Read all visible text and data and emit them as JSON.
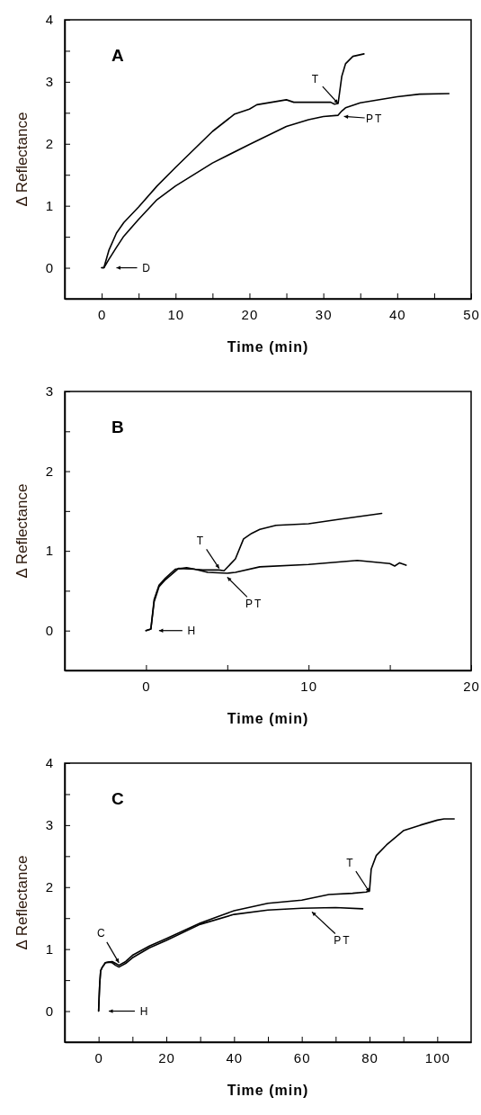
{
  "chart_data": [
    {
      "type": "line",
      "title": "A",
      "xlabel": "Time (min)",
      "ylabel": "Δ Reflectance",
      "xlim": [
        -5,
        50
      ],
      "xticks": [
        0,
        {
          "value": 5,
          "label": null
        },
        10,
        {
          "value": 15,
          "label": null
        },
        20,
        {
          "value": 25,
          "label": null
        },
        30,
        {
          "value": 35,
          "label": null
        },
        40,
        {
          "value": 45,
          "label": null
        },
        50
      ],
      "ylim": [
        -0.5,
        4
      ],
      "yticks": [
        {
          "value": -0.5,
          "label": null
        },
        0,
        {
          "value": 0.5,
          "label": null
        },
        1,
        {
          "value": 1.5,
          "label": null
        },
        2,
        {
          "value": 2.5,
          "label": null
        },
        3,
        {
          "value": 3.5,
          "label": null
        },
        4
      ],
      "series": [
        {
          "color": "#000000",
          "x": [
            0,
            0.3,
            1,
            2,
            3,
            5,
            7.5,
            10,
            15,
            18,
            20,
            21,
            25,
            26,
            31,
            31.5,
            32,
            32.5,
            33,
            34,
            35.5
          ],
          "values": [
            0,
            0,
            0.29,
            0.56,
            0.73,
            0.98,
            1.32,
            1.62,
            2.2,
            2.48,
            2.56,
            2.63,
            2.71,
            2.67,
            2.67,
            2.64,
            2.65,
            3.09,
            3.29,
            3.41,
            3.45
          ]
        },
        {
          "color": "#000000",
          "x": [
            0,
            0.3,
            1,
            2,
            3,
            5,
            7.5,
            10,
            15,
            20,
            25,
            28,
            30,
            32,
            32.5,
            33,
            35,
            40,
            43,
            47
          ],
          "values": [
            0,
            0,
            0.14,
            0.33,
            0.51,
            0.78,
            1.1,
            1.32,
            1.69,
            1.99,
            2.28,
            2.39,
            2.44,
            2.46,
            2.53,
            2.58,
            2.66,
            2.76,
            2.8,
            2.81
          ]
        }
      ],
      "annotations": [
        {
          "text": "T",
          "x": 32,
          "y": 2.65
        },
        {
          "text": "PT",
          "x": 32.8,
          "y": 2.44
        },
        {
          "text": "D",
          "x": 2,
          "y": 0
        }
      ]
    },
    {
      "type": "line",
      "title": "B",
      "xlabel": "Time (min)",
      "ylabel": "Δ Reflectance",
      "xlim": [
        -5,
        20
      ],
      "xticks": [
        0,
        {
          "value": 5,
          "label": null
        },
        10,
        {
          "value": 15,
          "label": null
        },
        20
      ],
      "ylim": [
        -0.5,
        3
      ],
      "yticks": [
        {
          "value": -0.5,
          "label": null
        },
        0,
        {
          "value": 0.5,
          "label": null
        },
        1,
        {
          "value": 1.5,
          "label": null
        },
        2,
        {
          "value": 2.5,
          "label": null
        },
        3
      ],
      "series": [
        {
          "color": "#000000",
          "x": [
            0,
            0.3,
            0.5,
            0.8,
            1.2,
            1.8,
            2.5,
            3,
            3.5,
            4.5,
            4.8,
            5.5,
            6,
            6.5,
            7,
            8,
            10,
            12,
            14.5
          ],
          "values": [
            0,
            0.02,
            0.39,
            0.57,
            0.66,
            0.77,
            0.79,
            0.77,
            0.76,
            0.76,
            0.75,
            0.9,
            1.15,
            1.22,
            1.27,
            1.32,
            1.34,
            1.4,
            1.47
          ]
        },
        {
          "color": "#000000",
          "x": [
            0,
            0.3,
            0.5,
            0.8,
            1.2,
            2,
            3,
            3.8,
            5,
            5.5,
            7,
            10,
            13,
            14,
            15,
            15.3,
            15.6,
            16
          ],
          "values": [
            0,
            0.02,
            0.36,
            0.55,
            0.64,
            0.78,
            0.77,
            0.73,
            0.72,
            0.73,
            0.8,
            0.83,
            0.88,
            0.86,
            0.84,
            0.81,
            0.85,
            0.82
          ]
        }
      ],
      "annotations": [
        {
          "text": "T",
          "x": 4.5,
          "y": 0.78
        },
        {
          "text": "PT",
          "x": 5,
          "y": 0.67
        },
        {
          "text": "H",
          "x": 0.8,
          "y": 0
        }
      ]
    },
    {
      "type": "line",
      "title": "C",
      "xlabel": "Time (min)",
      "ylabel": "Δ Reflectance",
      "xlim": [
        -10,
        110
      ],
      "xticks": [
        {
          "value": -10,
          "label": null
        },
        0,
        {
          "value": 10,
          "label": null
        },
        20,
        {
          "value": 30,
          "label": null
        },
        40,
        {
          "value": 50,
          "label": null
        },
        60,
        {
          "value": 70,
          "label": null
        },
        80,
        {
          "value": 90,
          "label": null
        },
        100
      ],
      "ylim": [
        -0.5,
        4
      ],
      "yticks": [
        {
          "value": -0.5,
          "label": null
        },
        0,
        {
          "value": 0.5,
          "label": null
        },
        1,
        {
          "value": 1.5,
          "label": null
        },
        2,
        {
          "value": 2.5,
          "label": null
        },
        3,
        {
          "value": 3.5,
          "label": null
        },
        4
      ],
      "series": [
        {
          "color": "#000000",
          "x": [
            0,
            0.3,
            0.6,
            1,
            2,
            3,
            4,
            5,
            6,
            8,
            10,
            15,
            20,
            30,
            40,
            50,
            60,
            68,
            75,
            79,
            80,
            80.5,
            82,
            85,
            90,
            95,
            100,
            102,
            105
          ],
          "values": [
            0,
            0.41,
            0.65,
            0.7,
            0.78,
            0.79,
            0.8,
            0.77,
            0.74,
            0.8,
            0.9,
            1.05,
            1.17,
            1.42,
            1.62,
            1.74,
            1.79,
            1.88,
            1.9,
            1.92,
            1.94,
            2.29,
            2.51,
            2.68,
            2.91,
            3.0,
            3.08,
            3.1,
            3.1
          ]
        },
        {
          "color": "#000000",
          "x": [
            0,
            0.3,
            0.6,
            1,
            2,
            3,
            4,
            5,
            6,
            8,
            10,
            15,
            20,
            30,
            40,
            50,
            60,
            70,
            78
          ],
          "values": [
            0,
            0.41,
            0.65,
            0.7,
            0.78,
            0.79,
            0.78,
            0.74,
            0.71,
            0.77,
            0.86,
            1.02,
            1.14,
            1.4,
            1.56,
            1.63,
            1.66,
            1.67,
            1.65
          ]
        }
      ],
      "annotations": [
        {
          "text": "C",
          "x": 6,
          "y": 0.78
        },
        {
          "text": "PT",
          "x": 63,
          "y": 1.6
        },
        {
          "text": "H",
          "x": 3,
          "y": 0
        },
        {
          "text": "T",
          "x": 80,
          "y": 1.92
        }
      ]
    }
  ]
}
